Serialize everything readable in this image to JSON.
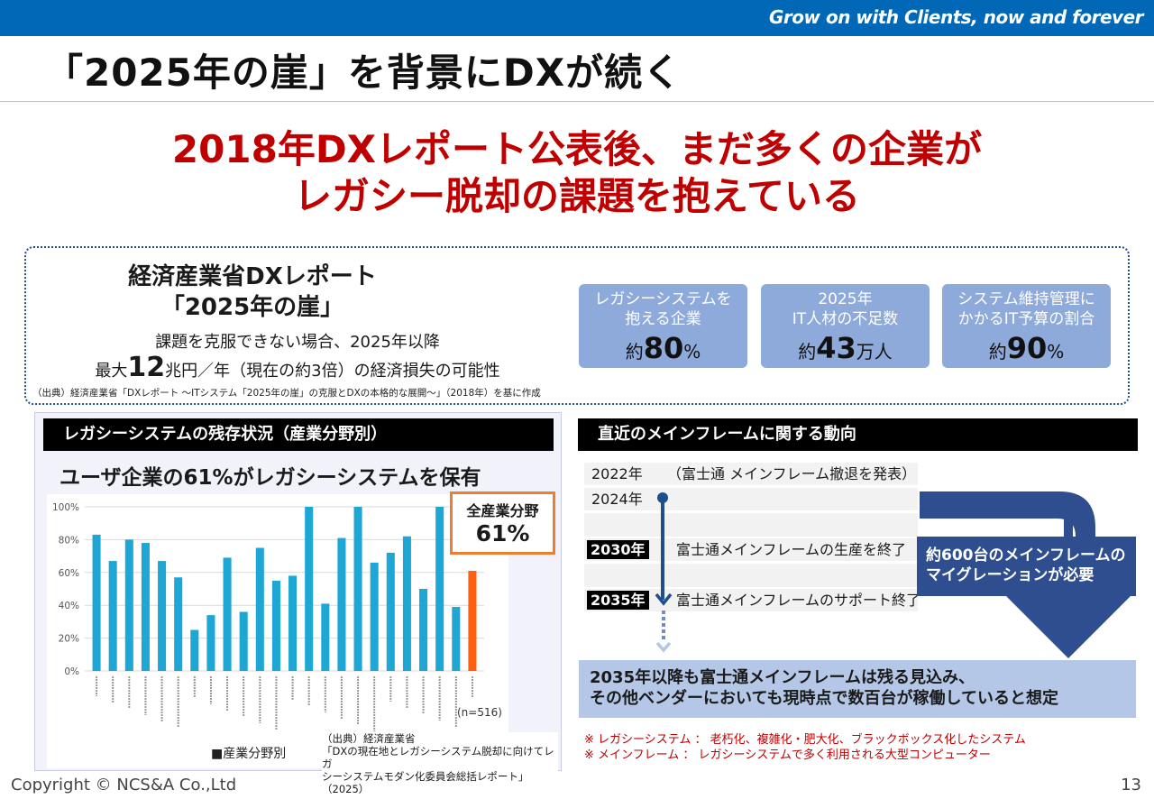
{
  "header": {
    "tagline": "Grow on with Clients, now and forever",
    "title": "「2025年の崖」を背景にDXが続く"
  },
  "headline": {
    "line1": "2018年DXレポート公表後、まだ多くの企業が",
    "line2": "レガシー脱却の課題を抱えている"
  },
  "report": {
    "title_line1": "経済産業省DXレポート",
    "title_line2": "「2025年の崖」",
    "desc_line1": "課題を克服できない場合、2025年以降",
    "desc_prefix": "最大",
    "desc_number": "12",
    "desc_suffix": "兆円／年（現在の約3倍）の経済損失の可能性",
    "source": "（出典）経済産業省「DXレポート ～ITシステム「2025年の崖」の克服とDXの本格的な展開～」（2018年）を基に作成"
  },
  "stats": [
    {
      "label1": "レガシーシステムを",
      "label2": "抱える企業",
      "prefix": "約",
      "number": "80",
      "unit": "%"
    },
    {
      "label1": "2025年",
      "label2": "IT人材の不足数",
      "prefix": "約",
      "number": "43",
      "unit": "万人"
    },
    {
      "label1": "システム維持管理に",
      "label2": "かかるIT予算の割合",
      "prefix": "約",
      "number": "90",
      "unit": "%"
    }
  ],
  "legacy_panel": {
    "heading": "レガシーシステムの残存状況（産業分野別）",
    "chart_headline": "ユーザ企業の61%がレガシーシステムを保有",
    "callout_label": "全産業分野",
    "callout_value": "61%",
    "source_line1": "（出典）経済産業省",
    "source_line2": "「DXの現在地とレガシーシステム脱却に向けてレガ",
    "source_line3": "シーシステムモダン化委員会総括レポート」（2025）"
  },
  "chart_data": {
    "type": "bar",
    "ylim": [
      0,
      100
    ],
    "yticks": [
      "0%",
      "20%",
      "40%",
      "60%",
      "80%",
      "100%"
    ],
    "values": [
      83,
      67,
      80,
      78,
      67,
      57,
      25,
      34,
      69,
      36,
      75,
      55,
      58,
      100,
      41,
      81,
      100,
      66,
      72,
      82,
      50,
      100,
      39,
      61
    ],
    "highlight_index": 23,
    "legend": "■産業分野別",
    "n_label": "(n=516)",
    "colors": {
      "bar": "#1ea7d4",
      "highlight": "#ff6010"
    }
  },
  "timeline": {
    "heading": "直近のメインフレームに関する動向",
    "rows": [
      {
        "year": "2022年",
        "text": "（富士通 メインフレーム撤退を発表）",
        "dark": false
      },
      {
        "year": "2024年",
        "text": "",
        "dark": false
      },
      {
        "year": "2030年",
        "text": "富士通メインフレームの生産を終了",
        "dark": true
      },
      {
        "year": "2035年",
        "text": "富士通メインフレームのサポート終了",
        "dark": true
      }
    ],
    "migration_line1": "約600台のメインフレームの",
    "migration_line2": "マイグレーションが必要",
    "conclusion_line1": "2035年以降も富士通メインフレームは残る見込み、",
    "conclusion_line2": "その他ベンダーにおいても現時点で数百台が稼働していると想定",
    "note1": "※ レガシーシステム ： 老朽化、複雑化・肥大化、ブラックボックス化したシステム",
    "note2": "※ メインフレーム ： レガシーシステムで多く利用される大型コンピューター"
  },
  "footer": {
    "copyright": "Copyright © NCS&A Co.,Ltd",
    "page": "13"
  }
}
